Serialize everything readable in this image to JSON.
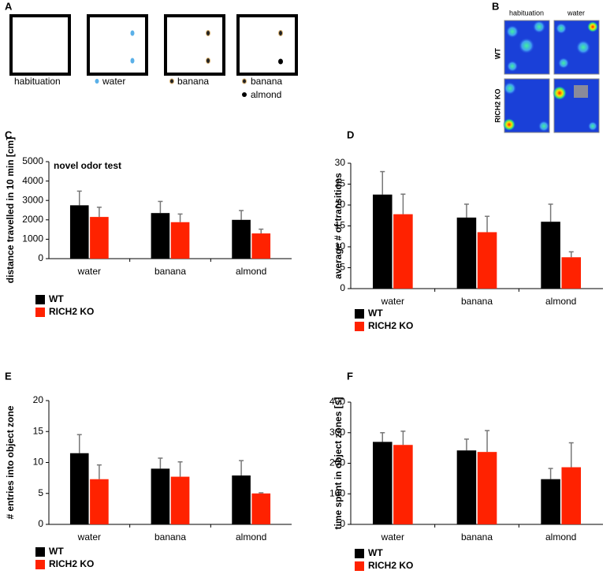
{
  "schematic": {
    "panel": "A",
    "boxes": [
      {
        "labels": [
          "habituation"
        ]
      },
      {
        "labels": [
          "water"
        ]
      },
      {
        "labels": [
          "banana"
        ]
      },
      {
        "labels": [
          "banana",
          "almond"
        ]
      }
    ]
  },
  "heatmaps": {
    "panel": "B",
    "columns": [
      "habituation",
      "water"
    ],
    "rows": [
      "WT",
      "RICH2 KO"
    ]
  },
  "chart_data": [
    {
      "type": "bar",
      "panel": "C",
      "title": "novel odor test",
      "y_label": "distance travelled in 10 min [cm]",
      "categories": [
        "water",
        "banana",
        "almond"
      ],
      "series": [
        {
          "name": "WT",
          "color": "#000000",
          "values": [
            2750,
            2350,
            2000
          ],
          "errors": [
            730,
            600,
            480
          ]
        },
        {
          "name": "RICH2 KO",
          "color": "#ff2200",
          "values": [
            2150,
            1880,
            1300
          ],
          "errors": [
            500,
            420,
            220
          ]
        }
      ],
      "ylim": [
        0,
        5000
      ],
      "yticks": [
        0,
        1000,
        2000,
        3000,
        4000,
        5000
      ],
      "legend": "bottom-left"
    },
    {
      "type": "bar",
      "panel": "D",
      "y_label": "average # of transitions",
      "categories": [
        "water",
        "banana",
        "almond"
      ],
      "series": [
        {
          "name": "WT",
          "color": "#000000",
          "values": [
            22.5,
            17,
            16
          ],
          "errors": [
            5.5,
            3.2,
            4.2
          ]
        },
        {
          "name": "RICH2 KO",
          "color": "#ff2200",
          "values": [
            17.8,
            13.5,
            7.5
          ],
          "errors": [
            4.8,
            3.8,
            1.3
          ]
        }
      ],
      "ylim": [
        0,
        30
      ],
      "yticks": [
        0,
        5,
        10,
        15,
        20,
        25,
        30
      ],
      "legend": "bottom-left"
    },
    {
      "type": "bar",
      "panel": "E",
      "y_label": "# entries into object zone",
      "categories": [
        "water",
        "banana",
        "almond"
      ],
      "series": [
        {
          "name": "WT",
          "color": "#000000",
          "values": [
            11.5,
            9,
            7.9
          ],
          "errors": [
            3,
            1.7,
            2.4
          ]
        },
        {
          "name": "RICH2 KO",
          "color": "#ff2200",
          "values": [
            7.3,
            7.7,
            5
          ],
          "errors": [
            2.3,
            2.4,
            0.1
          ]
        }
      ],
      "ylim": [
        0,
        20
      ],
      "yticks": [
        0,
        5,
        10,
        15,
        20
      ],
      "legend": "bottom-left"
    },
    {
      "type": "bar",
      "panel": "F",
      "y_label": "time spent in object zones [s]",
      "categories": [
        "water",
        "banana",
        "almond"
      ],
      "series": [
        {
          "name": "WT",
          "color": "#000000",
          "values": [
            270,
            242,
            148
          ],
          "errors": [
            30,
            37,
            35
          ]
        },
        {
          "name": "RICH2 KO",
          "color": "#ff2200",
          "values": [
            260,
            237,
            187
          ],
          "errors": [
            45,
            70,
            80
          ]
        }
      ],
      "ylim": [
        0,
        400
      ],
      "yticks": [
        0,
        100,
        200,
        300,
        400
      ],
      "legend": "bottom-left"
    }
  ]
}
